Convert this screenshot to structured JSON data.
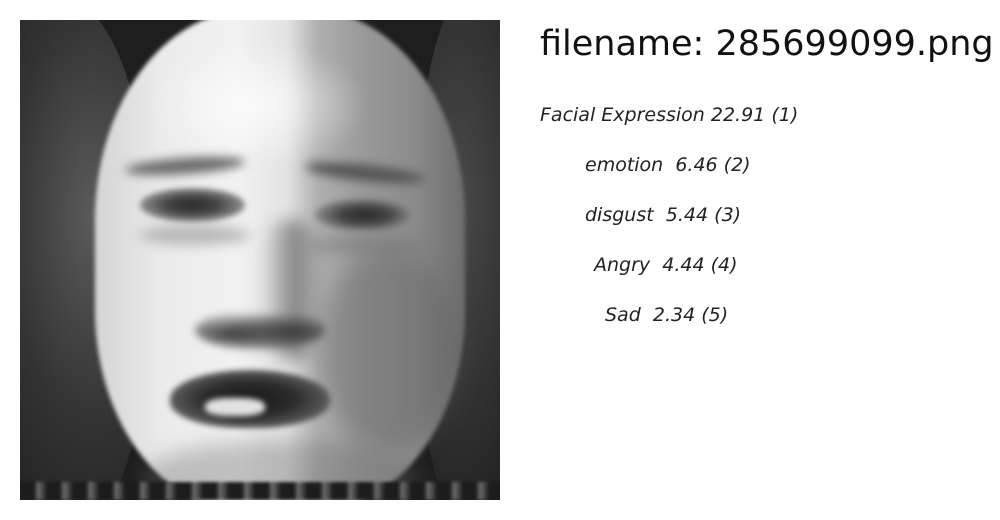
{
  "header": {
    "filename_prefix": "filename: ",
    "filename": "285699099.png"
  },
  "image": {
    "icon": "face-photo",
    "description_visible": false
  },
  "predictions": [
    {
      "label": "Facial Expression",
      "score": "22.91",
      "rank": "(1)"
    },
    {
      "label": "emotion",
      "score": "6.46",
      "rank": "(2)"
    },
    {
      "label": "disgust",
      "score": "5.44",
      "rank": "(3)"
    },
    {
      "label": "Angry",
      "score": "4.44",
      "rank": "(4)"
    },
    {
      "label": "Sad",
      "score": "2.34",
      "rank": "(5)"
    }
  ],
  "colors": {
    "text": "#111111",
    "background": "#ffffff"
  }
}
